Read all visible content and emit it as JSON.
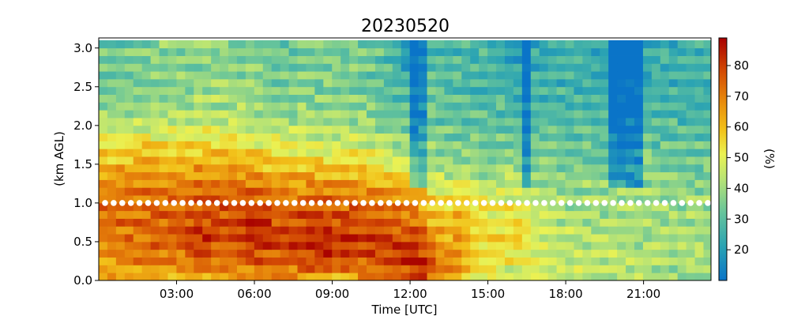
{
  "chart_data": {
    "type": "heatmap",
    "title": "20230520",
    "xlabel": "Time [UTC]",
    "ylabel": "(km AGL)",
    "colorbar_label": "(%)",
    "xlim": [
      0,
      23.6
    ],
    "ylim": [
      0,
      3.13
    ],
    "xticks": [
      {
        "value": 3,
        "label": "03:00"
      },
      {
        "value": 6,
        "label": "06:00"
      },
      {
        "value": 9,
        "label": "09:00"
      },
      {
        "value": 12,
        "label": "12:00"
      },
      {
        "value": 15,
        "label": "15:00"
      },
      {
        "value": 18,
        "label": "18:00"
      },
      {
        "value": 21,
        "label": "21:00"
      }
    ],
    "yticks": [
      {
        "value": 0.0,
        "label": "0.0"
      },
      {
        "value": 0.5,
        "label": "0.5"
      },
      {
        "value": 1.0,
        "label": "1.0"
      },
      {
        "value": 1.5,
        "label": "1.5"
      },
      {
        "value": 2.0,
        "label": "2.0"
      },
      {
        "value": 2.5,
        "label": "2.5"
      },
      {
        "value": 3.0,
        "label": "3.0"
      }
    ],
    "colorbar_range": [
      10,
      89
    ],
    "colorbar_ticks": [
      {
        "value": 20,
        "label": "20"
      },
      {
        "value": 30,
        "label": "30"
      },
      {
        "value": 40,
        "label": "40"
      },
      {
        "value": 50,
        "label": "50"
      },
      {
        "value": 60,
        "label": "60"
      },
      {
        "value": 70,
        "label": "70"
      },
      {
        "value": 80,
        "label": "80"
      }
    ],
    "colormap": "red-yellow-green-blue (high values red, low values blue)",
    "marker_line": {
      "height": 1.0,
      "color": "#ffffff",
      "style": "dotted"
    },
    "time_step_hours": 0.333,
    "heights": [
      0.05,
      0.15,
      0.25,
      0.35,
      0.45,
      0.55,
      0.65,
      0.75,
      0.85,
      0.95,
      1.05,
      1.15,
      1.25,
      1.35,
      1.45,
      1.55,
      1.65,
      1.75,
      1.85,
      1.95,
      2.05,
      2.15,
      2.25,
      2.35,
      2.45,
      2.55,
      2.65,
      2.75,
      2.85,
      2.95,
      3.05
    ],
    "profile_keyframes": [
      {
        "time": 0.0,
        "values": [
          62,
          67,
          70,
          73,
          72,
          67,
          60,
          52,
          44,
          37,
          33,
          32
        ]
      },
      {
        "time": 1.0,
        "values": [
          60,
          68,
          72,
          73,
          72,
          68,
          62,
          53,
          44,
          38,
          35,
          33
        ]
      },
      {
        "time": 2.0,
        "values": [
          58,
          70,
          73,
          75,
          73,
          70,
          64,
          55,
          46,
          40,
          38,
          36
        ]
      },
      {
        "time": 3.0,
        "values": [
          60,
          71,
          74,
          75,
          74,
          70,
          62,
          54,
          45,
          40,
          38,
          37
        ]
      },
      {
        "time": 4.0,
        "values": [
          62,
          75,
          82,
          80,
          76,
          72,
          64,
          55,
          47,
          42,
          40,
          37
        ]
      },
      {
        "time": 5.0,
        "values": [
          60,
          72,
          76,
          76,
          75,
          70,
          63,
          54,
          46,
          41,
          39,
          37
        ]
      },
      {
        "time": 6.0,
        "values": [
          62,
          76,
          84,
          83,
          78,
          72,
          62,
          52,
          44,
          39,
          37,
          35
        ]
      },
      {
        "time": 7.0,
        "values": [
          66,
          74,
          78,
          76,
          72,
          66,
          57,
          48,
          42,
          36,
          34,
          33
        ]
      },
      {
        "time": 8.0,
        "values": [
          64,
          80,
          82,
          80,
          75,
          68,
          58,
          48,
          42,
          38,
          36,
          34
        ]
      },
      {
        "time": 9.0,
        "values": [
          60,
          80,
          82,
          78,
          74,
          66,
          56,
          46,
          40,
          37,
          36,
          35
        ]
      },
      {
        "time": 10.0,
        "values": [
          62,
          76,
          80,
          78,
          73,
          66,
          58,
          48,
          40,
          36,
          35,
          34
        ]
      },
      {
        "time": 11.0,
        "values": [
          70,
          80,
          80,
          76,
          70,
          62,
          50,
          42,
          36,
          33,
          32,
          31
        ]
      },
      {
        "time": 12.0,
        "values": [
          72,
          83,
          80,
          74,
          68,
          60,
          48,
          40,
          34,
          28,
          24,
          20
        ]
      },
      {
        "time": 12.5,
        "values": [
          76,
          82,
          76,
          68,
          62,
          54,
          46,
          40,
          36,
          33,
          32,
          31
        ]
      },
      {
        "time": 13.0,
        "values": [
          68,
          74,
          66,
          60,
          54,
          46,
          40,
          36,
          33,
          31,
          30,
          29
        ]
      },
      {
        "time": 14.0,
        "values": [
          58,
          66,
          64,
          62,
          58,
          48,
          40,
          36,
          32,
          30,
          28,
          27
        ]
      },
      {
        "time": 15.0,
        "values": [
          46,
          52,
          54,
          52,
          48,
          42,
          37,
          34,
          31,
          29,
          28,
          27
        ]
      },
      {
        "time": 16.0,
        "values": [
          44,
          50,
          58,
          56,
          50,
          44,
          38,
          34,
          31,
          28,
          25,
          22
        ]
      },
      {
        "time": 17.0,
        "values": [
          50,
          48,
          46,
          44,
          42,
          40,
          37,
          33,
          30,
          28,
          26,
          24
        ]
      },
      {
        "time": 18.0,
        "values": [
          46,
          44,
          44,
          42,
          40,
          38,
          35,
          32,
          29,
          27,
          26,
          25
        ]
      },
      {
        "time": 19.0,
        "values": [
          45,
          44,
          44,
          42,
          40,
          38,
          35,
          32,
          29,
          27,
          26,
          25
        ]
      },
      {
        "time": 20.0,
        "values": [
          44,
          42,
          42,
          41,
          40,
          38,
          35,
          31,
          28,
          25,
          22,
          20
        ]
      },
      {
        "time": 21.0,
        "values": [
          42,
          42,
          42,
          41,
          40,
          38,
          35,
          32,
          28,
          26,
          24,
          23
        ]
      },
      {
        "time": 22.0,
        "values": [
          40,
          40,
          40,
          40,
          39,
          37,
          34,
          32,
          29,
          27,
          26,
          25
        ]
      },
      {
        "time": 23.6,
        "values": [
          40,
          40,
          40,
          40,
          39,
          37,
          34,
          32,
          29,
          27,
          26,
          25
        ]
      }
    ],
    "dry_column_times": [
      12.3,
      16.5,
      19.9,
      20.7
    ]
  }
}
